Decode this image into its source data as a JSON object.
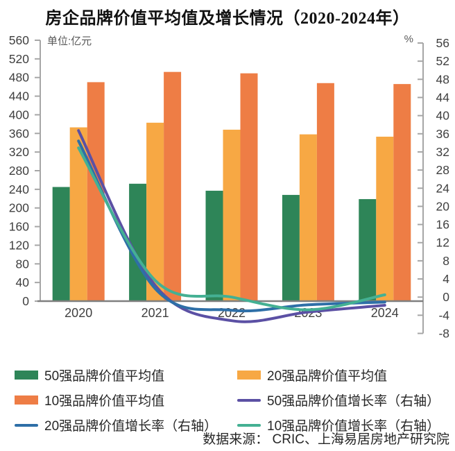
{
  "title": "房企品牌价值平均值及增长情况（2020-2024年）",
  "source": "数据来源： CRIC、上海易居房地产研究院",
  "chart_data": {
    "type": "bar+line",
    "categories": [
      "2020",
      "2021",
      "2022",
      "2023",
      "2024"
    ],
    "left_axis": {
      "unit_label": "单位:亿元",
      "min": 0,
      "max": 560,
      "step": 40
    },
    "right_axis": {
      "unit_label": "%",
      "min": -8,
      "max": 56,
      "step": 4
    },
    "grid": false,
    "legend_position": "bottom",
    "bar_series": [
      {
        "name": "50强品牌价值平均值",
        "color": "#2E8558",
        "axis": "left",
        "values": [
          245,
          252,
          237,
          228,
          219
        ]
      },
      {
        "name": "20强品牌价值平均值",
        "color": "#F7A844",
        "axis": "left",
        "values": [
          373,
          383,
          368,
          358,
          353
        ]
      },
      {
        "name": "10强品牌价值平均值",
        "color": "#EE7D45",
        "axis": "left",
        "values": [
          470,
          492,
          489,
          468,
          466
        ]
      }
    ],
    "line_series": [
      {
        "name": "50强品牌价值增长率（右轴）",
        "color": "#5B50A4",
        "axis": "right",
        "values": [
          36.7,
          2.6,
          -5.2,
          -3.3,
          -1.8
        ]
      },
      {
        "name": "20强品牌价值增长率（右轴）",
        "color": "#2E6FA7",
        "axis": "right",
        "values": [
          34.4,
          1.9,
          -2.9,
          -1.7,
          -1.1
        ]
      },
      {
        "name": "10强品牌价值增长率（右轴）",
        "color": "#44B093",
        "axis": "right",
        "values": [
          32.9,
          3.7,
          0.0,
          -2.8,
          0.5
        ]
      }
    ]
  },
  "legend": {
    "items": [
      {
        "label": "50强品牌价值平均值",
        "swatch": "bar",
        "color": "#2E8558"
      },
      {
        "label": "20强品牌价值平均值",
        "swatch": "bar",
        "color": "#F7A844"
      },
      {
        "label": "10强品牌价值平均值",
        "swatch": "bar",
        "color": "#EE7D45"
      },
      {
        "label": "50强品牌价值增长率（右轴）",
        "swatch": "line",
        "color": "#5B50A4"
      },
      {
        "label": "20强品牌价值增长率（右轴）",
        "swatch": "line",
        "color": "#2E6FA7"
      },
      {
        "label": "10强品牌价值增长率（右轴）",
        "swatch": "line",
        "color": "#44B093"
      }
    ]
  }
}
